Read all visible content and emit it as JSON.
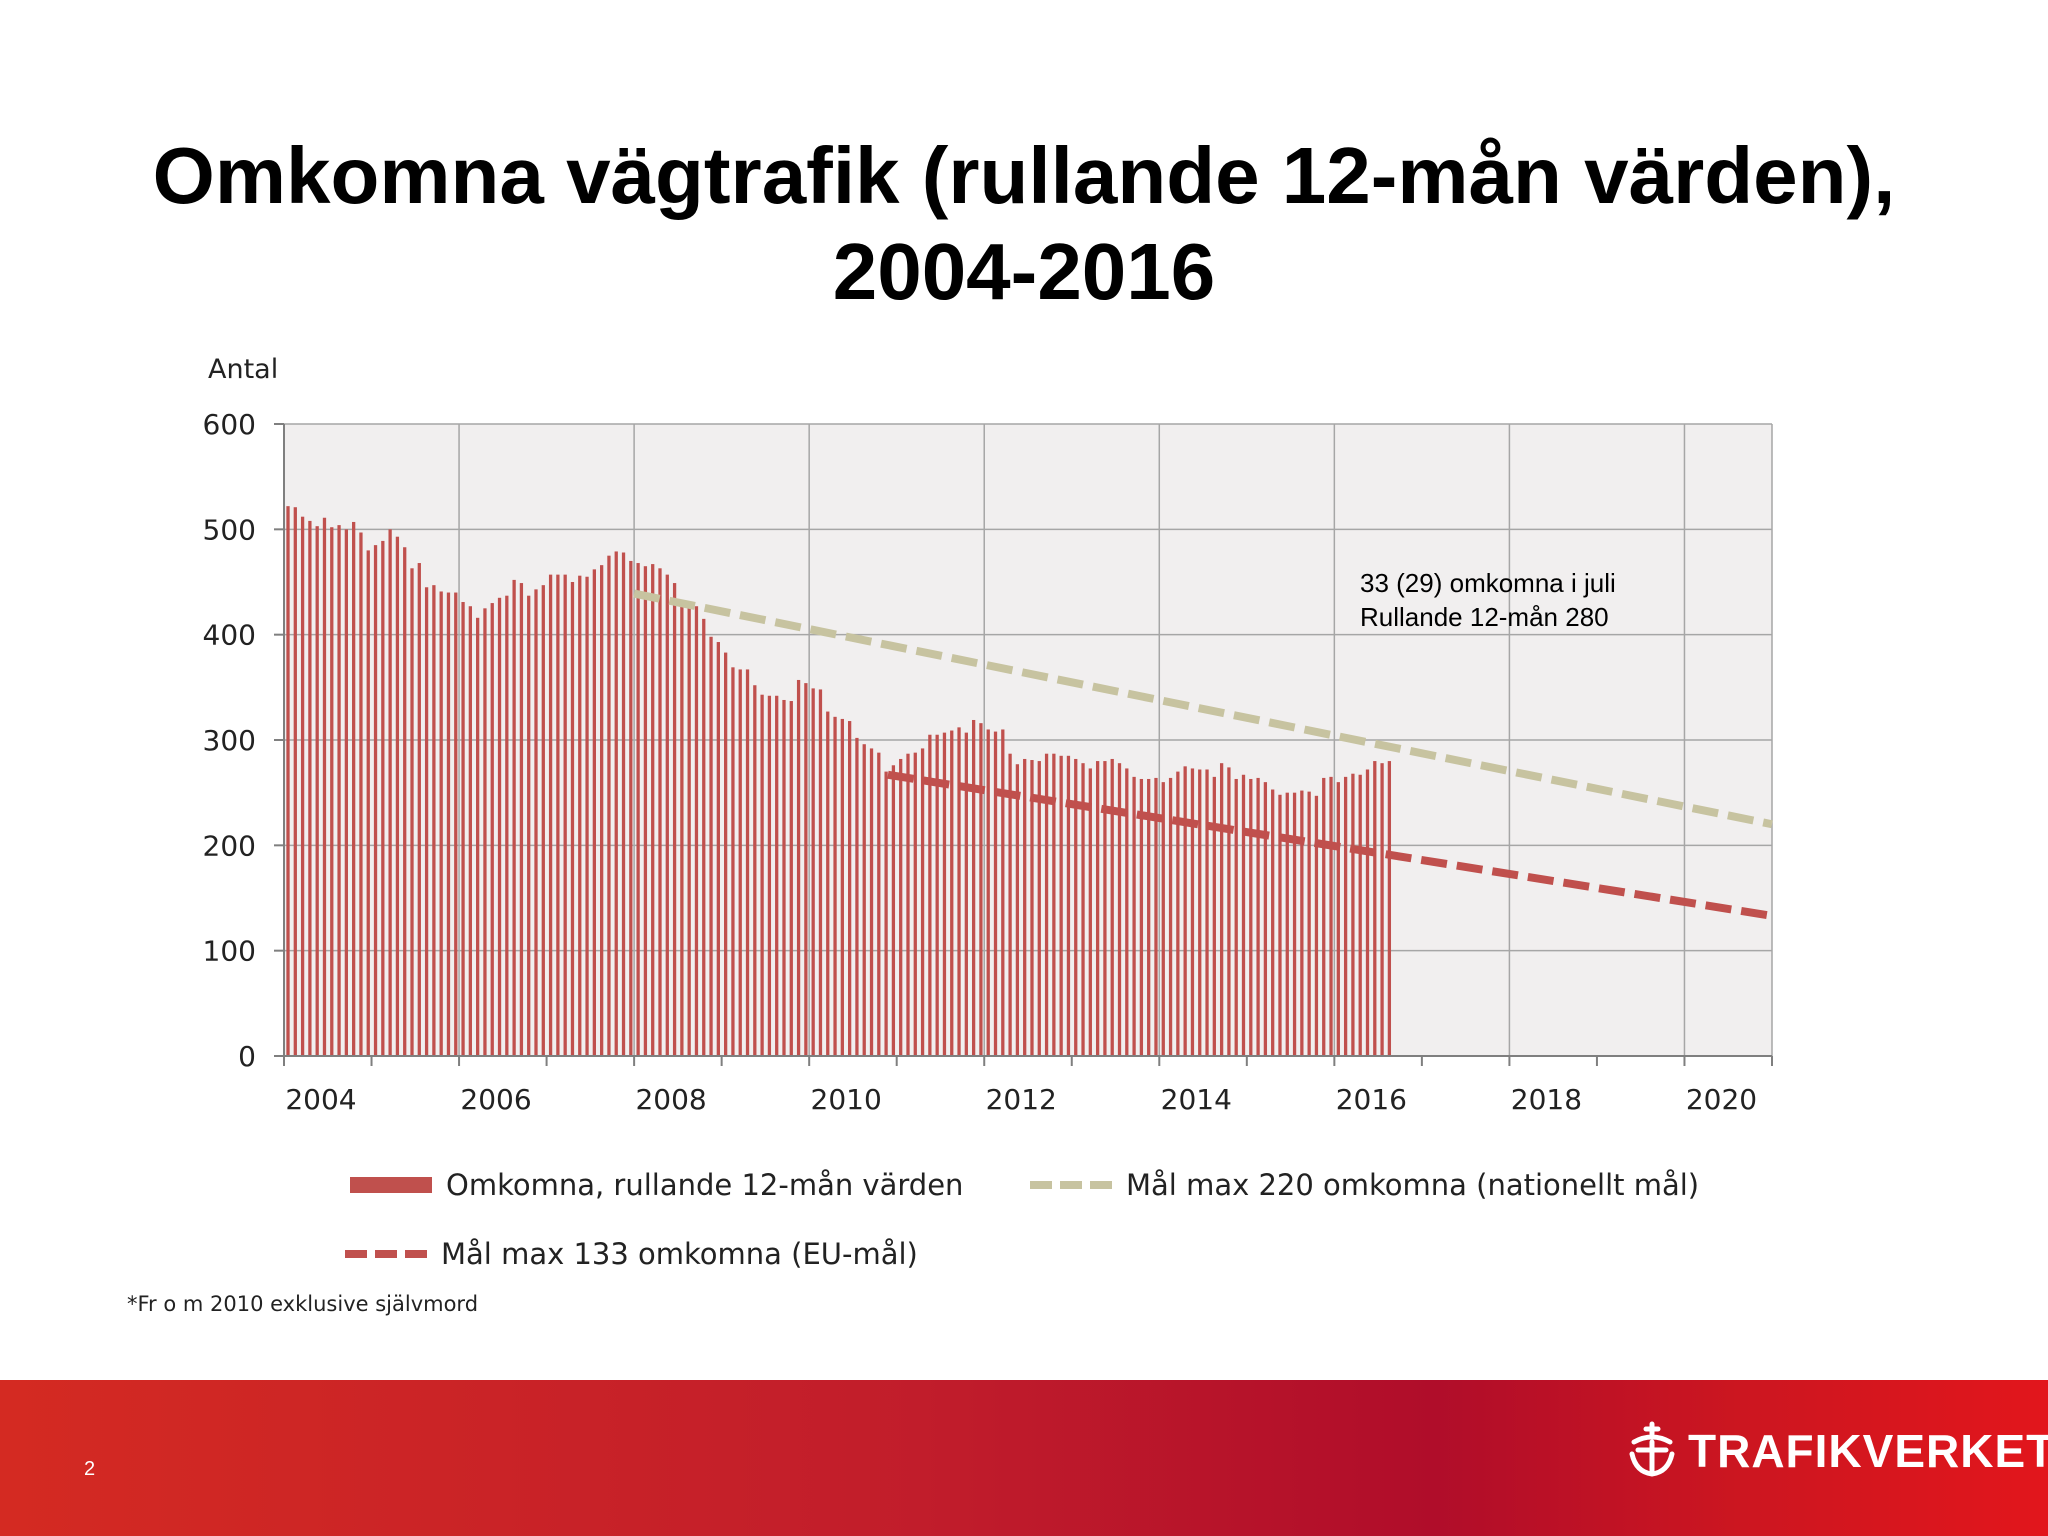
{
  "slide": {
    "title_line1": "Omkomna vägtrafik (rullande 12-mån värden),",
    "title_line2": "2004-2016",
    "page_number": "2",
    "footnote": "*Fr o m 2010 exklusive självmord",
    "logo_text": "TRAFIKVERKET",
    "logo_icon": "trafikverket-crown-icon"
  },
  "chart_data": {
    "type": "bar",
    "title": "Omkomna vägtrafik (rullande 12-mån värden), 2004-2016",
    "ylabel": "Antal",
    "ylim": [
      0,
      600
    ],
    "yticks": [
      0,
      100,
      200,
      300,
      400,
      500,
      600
    ],
    "xlim": [
      2004,
      2021
    ],
    "xtick_labels": [
      "2004",
      "2006",
      "2008",
      "2010",
      "2012",
      "2014",
      "2016",
      "2018",
      "2020"
    ],
    "xtick_values": [
      2004,
      2006,
      2008,
      2010,
      2012,
      2014,
      2016,
      2018,
      2020
    ],
    "grid": true,
    "legend_placement": "bottom",
    "annotation_line1": "33 (29) omkomna i juli",
    "annotation_line2": "Rullande 12-mån 280",
    "colors": {
      "bars": "#c0504d",
      "national_target": "#c7c3a0",
      "eu_target": "#c0504d",
      "plot_bg": "#f1efef",
      "grid": "#a6a6a6"
    },
    "series": [
      {
        "name": "Omkomna, rullande 12-mån värden",
        "style": "bar",
        "x_start": 2004.0,
        "x_step": 0.08333,
        "values": [
          522,
          521,
          512,
          508,
          503,
          511,
          502,
          504,
          500,
          507,
          497,
          480,
          485,
          489,
          500,
          493,
          483,
          463,
          468,
          445,
          447,
          441,
          440,
          440,
          431,
          427,
          416,
          425,
          430,
          435,
          437,
          452,
          449,
          437,
          443,
          447,
          457,
          457,
          457,
          450,
          456,
          455,
          462,
          466,
          475,
          479,
          478,
          470,
          468,
          465,
          467,
          463,
          457,
          449,
          432,
          428,
          427,
          415,
          398,
          393,
          383,
          369,
          367,
          367,
          352,
          343,
          342,
          342,
          338,
          337,
          357,
          354,
          349,
          348,
          327,
          322,
          320,
          318,
          302,
          296,
          292,
          288,
          270,
          276,
          282,
          287,
          288,
          292,
          305,
          305,
          307,
          309,
          312,
          307,
          319,
          316,
          310,
          308,
          310,
          287,
          277,
          282,
          281,
          280,
          287,
          287,
          285,
          285,
          282,
          278,
          273,
          280,
          280,
          282,
          278,
          273,
          265,
          263,
          263,
          264,
          260,
          264,
          270,
          275,
          273,
          272,
          272,
          265,
          278,
          274,
          263,
          267,
          263,
          264,
          260,
          253,
          248,
          250,
          250,
          252,
          251,
          247,
          264,
          265,
          260,
          265,
          268,
          267,
          272,
          280,
          278,
          280
        ]
      },
      {
        "name": "Mål max 220 omkomna (nationellt mål)",
        "style": "dashed-line",
        "x": [
          2008.0,
          2021.0
        ],
        "values": [
          439,
          220
        ]
      },
      {
        "name": "Mål max 133 omkomna (EU-mål)",
        "style": "dashed-line",
        "x": [
          2010.9,
          2021.0
        ],
        "values": [
          267,
          133
        ]
      }
    ]
  }
}
